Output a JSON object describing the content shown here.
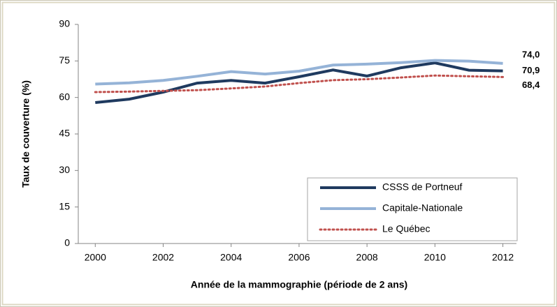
{
  "chart_data": {
    "type": "line",
    "xlabel": "Année de la mammographie (période de 2 ans)",
    "ylabel": "Taux de couverture (%)",
    "x": [
      2000,
      2001,
      2002,
      2003,
      2004,
      2005,
      2006,
      2007,
      2008,
      2009,
      2010,
      2011,
      2012
    ],
    "xlim": [
      1999.5,
      2012.4
    ],
    "xticks": [
      2000,
      2002,
      2004,
      2006,
      2008,
      2010,
      2012
    ],
    "ylim": [
      0,
      90
    ],
    "yticks": [
      0,
      15,
      30,
      45,
      60,
      75,
      90
    ],
    "grid": false,
    "legend": "lower right",
    "series": [
      {
        "name": "CSSS de Portneuf",
        "color": "#1f3a5f",
        "style": "solid",
        "values": [
          57.9,
          59.3,
          62.2,
          65.9,
          67.0,
          65.9,
          68.5,
          71.3,
          68.8,
          72.2,
          74.2,
          71.2,
          70.9
        ],
        "value_labels": [
          null,
          null,
          null,
          null,
          null,
          null,
          null,
          null,
          null,
          null,
          null,
          null,
          "70,9"
        ]
      },
      {
        "name": "Capitale-Nationale",
        "color": "#95b3d7",
        "style": "solid",
        "values": [
          65.5,
          66.0,
          67.0,
          68.7,
          70.6,
          69.6,
          70.8,
          73.3,
          73.7,
          74.3,
          75.2,
          74.9,
          74.0
        ],
        "value_labels": [
          null,
          null,
          null,
          null,
          null,
          null,
          null,
          null,
          null,
          null,
          null,
          null,
          "74,0"
        ]
      },
      {
        "name": "Le Québec",
        "color": "#c0504d",
        "style": "dotted",
        "values": [
          62.2,
          62.4,
          62.7,
          63.0,
          63.7,
          64.5,
          65.9,
          67.1,
          67.5,
          68.2,
          69.0,
          68.7,
          68.4
        ],
        "value_labels": [
          null,
          null,
          null,
          null,
          null,
          null,
          null,
          null,
          null,
          null,
          null,
          null,
          "68,4"
        ]
      }
    ]
  }
}
